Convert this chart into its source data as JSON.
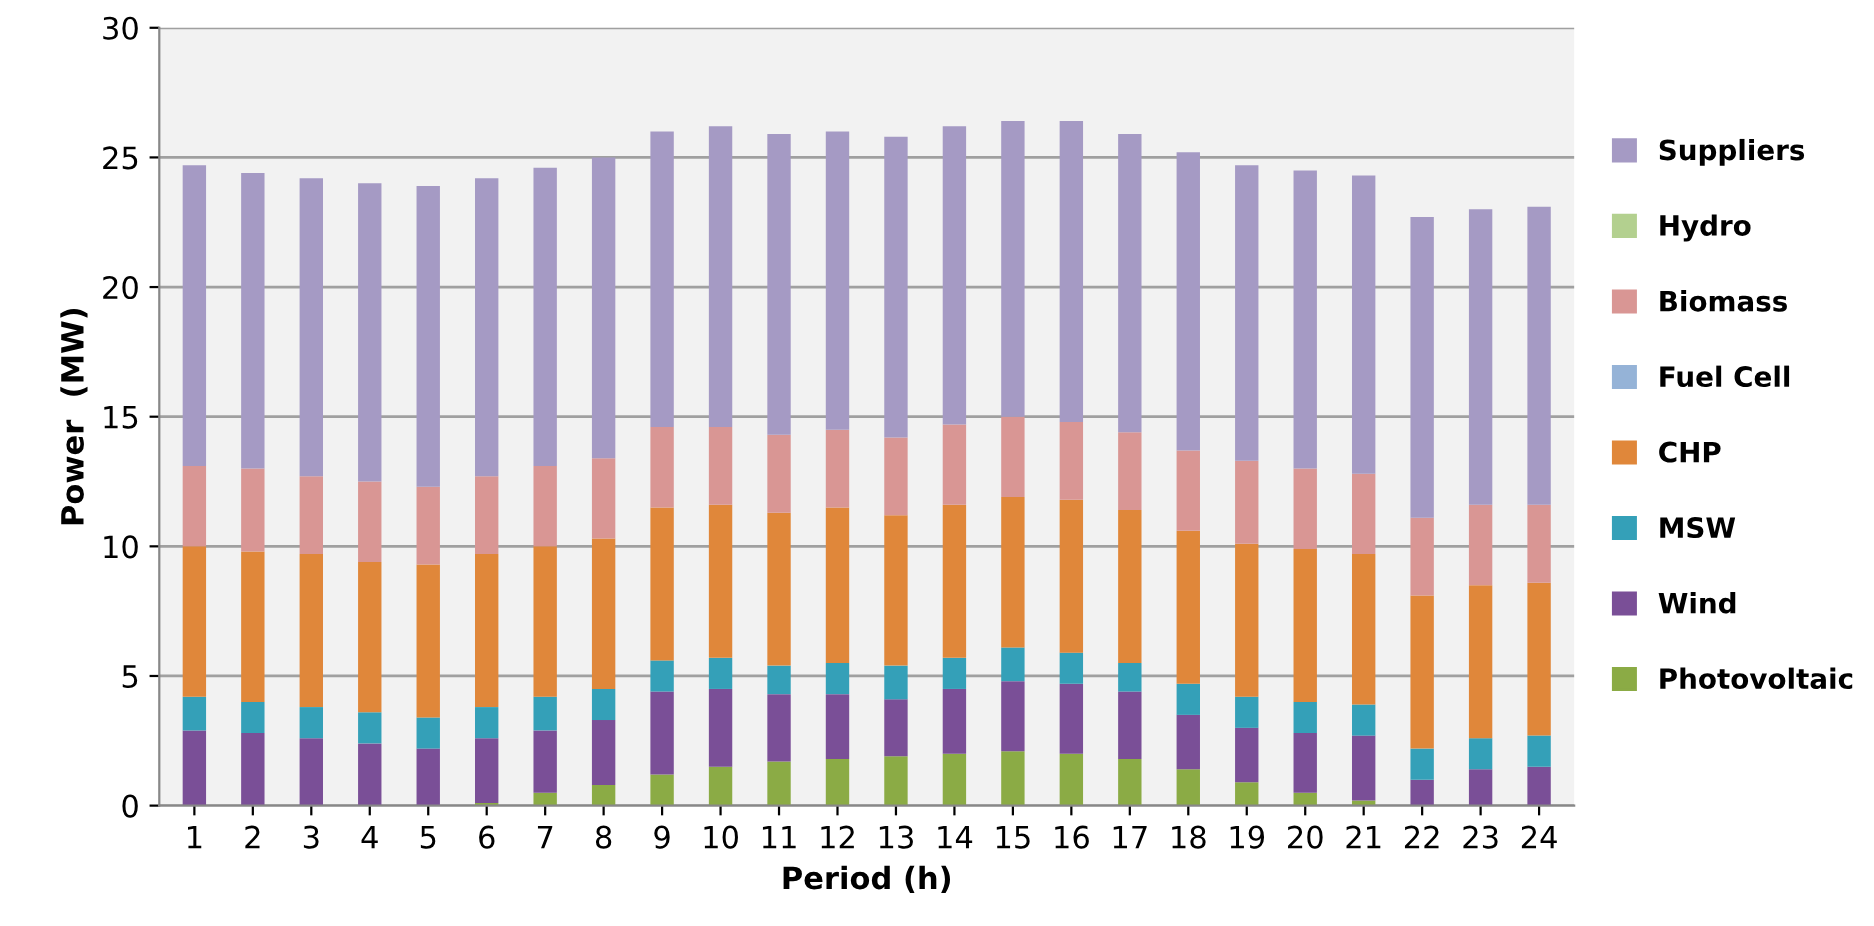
{
  "chart_data": {
    "type": "bar",
    "stacked": true,
    "xlabel": "Period (h)",
    "ylabel": "Power  (MW)",
    "categories": [
      "1",
      "2",
      "3",
      "4",
      "5",
      "6",
      "7",
      "8",
      "9",
      "10",
      "11",
      "12",
      "13",
      "14",
      "15",
      "16",
      "17",
      "18",
      "19",
      "20",
      "21",
      "22",
      "23",
      "24"
    ],
    "series": [
      {
        "name": "Photovoltaic",
        "color": "#8bab45",
        "values": [
          0,
          0,
          0,
          0,
          0,
          0.1,
          0.5,
          0.8,
          1.2,
          1.5,
          1.7,
          1.8,
          1.9,
          2.0,
          2.1,
          2.0,
          1.8,
          1.4,
          0.9,
          0.5,
          0.2,
          0,
          0,
          0
        ]
      },
      {
        "name": "Wind",
        "color": "#7a4f97",
        "values": [
          2.9,
          2.8,
          2.6,
          2.4,
          2.2,
          2.5,
          2.4,
          2.5,
          3.2,
          3.0,
          2.6,
          2.5,
          2.2,
          2.5,
          2.7,
          2.7,
          2.6,
          2.1,
          2.1,
          2.3,
          2.5,
          1.0,
          1.4,
          1.5
        ]
      },
      {
        "name": "MSW",
        "color": "#34a0b8",
        "values": [
          1.3,
          1.2,
          1.2,
          1.2,
          1.2,
          1.2,
          1.3,
          1.2,
          1.2,
          1.2,
          1.1,
          1.2,
          1.3,
          1.2,
          1.3,
          1.2,
          1.1,
          1.2,
          1.2,
          1.2,
          1.2,
          1.2,
          1.2,
          1.2
        ]
      },
      {
        "name": "CHP",
        "color": "#e0873a",
        "values": [
          5.8,
          5.8,
          5.9,
          5.8,
          5.9,
          5.9,
          5.8,
          5.8,
          5.9,
          5.9,
          5.9,
          6.0,
          5.8,
          5.9,
          5.8,
          5.9,
          5.9,
          5.9,
          5.9,
          5.9,
          5.8,
          5.9,
          5.9,
          5.9
        ]
      },
      {
        "name": "Fuel Cell",
        "color": "#95b3d7",
        "values": [
          0,
          0,
          0,
          0,
          0,
          0,
          0,
          0,
          0,
          0,
          0,
          0,
          0,
          0,
          0,
          0,
          0,
          0,
          0,
          0,
          0,
          0,
          0,
          0
        ]
      },
      {
        "name": "Biomass",
        "color": "#d99694",
        "values": [
          3.1,
          3.2,
          3.0,
          3.1,
          3.0,
          3.0,
          3.1,
          3.1,
          3.1,
          3.0,
          3.0,
          3.0,
          3.0,
          3.1,
          3.1,
          3.0,
          3.0,
          3.1,
          3.2,
          3.1,
          3.1,
          3.0,
          3.1,
          3.0
        ]
      },
      {
        "name": "Hydro",
        "color": "#b3d08f",
        "values": [
          0,
          0,
          0,
          0,
          0,
          0,
          0,
          0,
          0,
          0,
          0,
          0,
          0,
          0,
          0,
          0,
          0,
          0,
          0,
          0,
          0,
          0,
          0,
          0
        ]
      },
      {
        "name": "Suppliers",
        "color": "#a59ac4",
        "values": [
          11.6,
          11.4,
          11.5,
          11.5,
          11.6,
          11.5,
          11.5,
          11.6,
          11.4,
          11.6,
          11.6,
          11.5,
          11.6,
          11.5,
          11.4,
          11.6,
          11.5,
          11.5,
          11.4,
          11.5,
          11.5,
          11.6,
          11.4,
          11.5
        ]
      }
    ],
    "ylim": [
      0,
      30
    ],
    "yticks": [
      0,
      5,
      10,
      15,
      20,
      25,
      30
    ],
    "grid": "y",
    "legend": "right"
  }
}
